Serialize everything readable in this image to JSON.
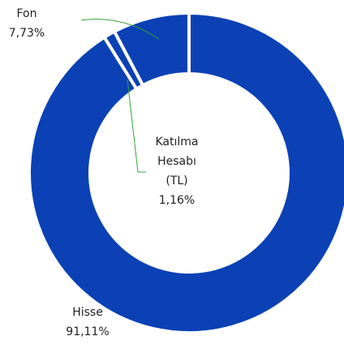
{
  "chart_data": {
    "type": "pie",
    "categories": [
      "Hisse",
      "Katılma Hesabı (TL)",
      "Fon"
    ],
    "values": [
      91.11,
      1.16,
      7.73
    ],
    "value_labels": [
      "91,11%",
      "1,16%",
      "7,73%"
    ],
    "color": "#0b41b4"
  }
}
